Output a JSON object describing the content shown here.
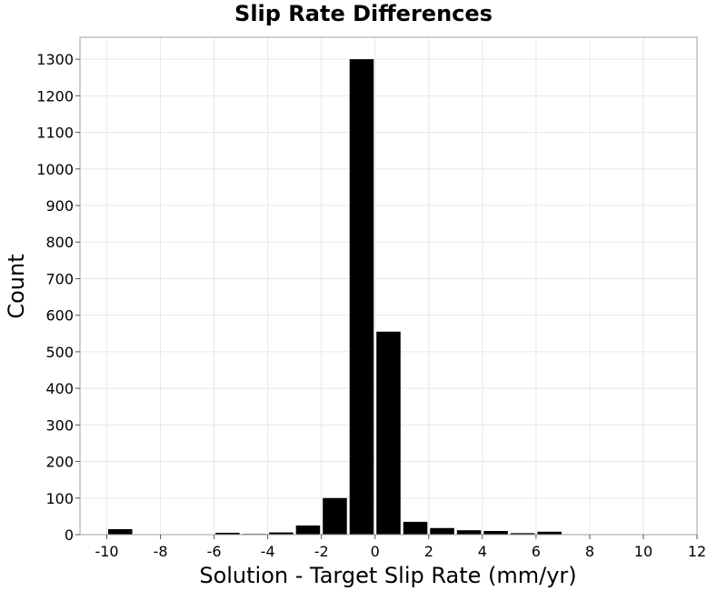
{
  "chart_data": {
    "type": "bar",
    "title": "Slip Rate Differences",
    "xlabel": "Solution - Target Slip Rate (mm/yr)",
    "ylabel": "Count",
    "xlim": [
      -11,
      12
    ],
    "ylim": [
      0,
      1360
    ],
    "bin_width": 1,
    "x_ticks": [
      -10,
      -8,
      -6,
      -4,
      -2,
      0,
      2,
      4,
      6,
      8,
      10,
      12
    ],
    "y_ticks": [
      0,
      100,
      200,
      300,
      400,
      500,
      600,
      700,
      800,
      900,
      1000,
      1100,
      1200,
      1300
    ],
    "grid": true,
    "bar_color": "#000000",
    "bins": [
      {
        "center": -9.5,
        "value": 15
      },
      {
        "center": -8.5,
        "value": 0
      },
      {
        "center": -7.5,
        "value": 0
      },
      {
        "center": -6.5,
        "value": 0
      },
      {
        "center": -5.5,
        "value": 5
      },
      {
        "center": -4.5,
        "value": 2
      },
      {
        "center": -3.5,
        "value": 6
      },
      {
        "center": -2.5,
        "value": 25
      },
      {
        "center": -1.5,
        "value": 100
      },
      {
        "center": -0.5,
        "value": 1300
      },
      {
        "center": 0.5,
        "value": 555
      },
      {
        "center": 1.5,
        "value": 35
      },
      {
        "center": 2.5,
        "value": 18
      },
      {
        "center": 3.5,
        "value": 12
      },
      {
        "center": 4.5,
        "value": 10
      },
      {
        "center": 5.5,
        "value": 4
      },
      {
        "center": 6.5,
        "value": 8
      },
      {
        "center": 7.5,
        "value": 1
      }
    ]
  }
}
